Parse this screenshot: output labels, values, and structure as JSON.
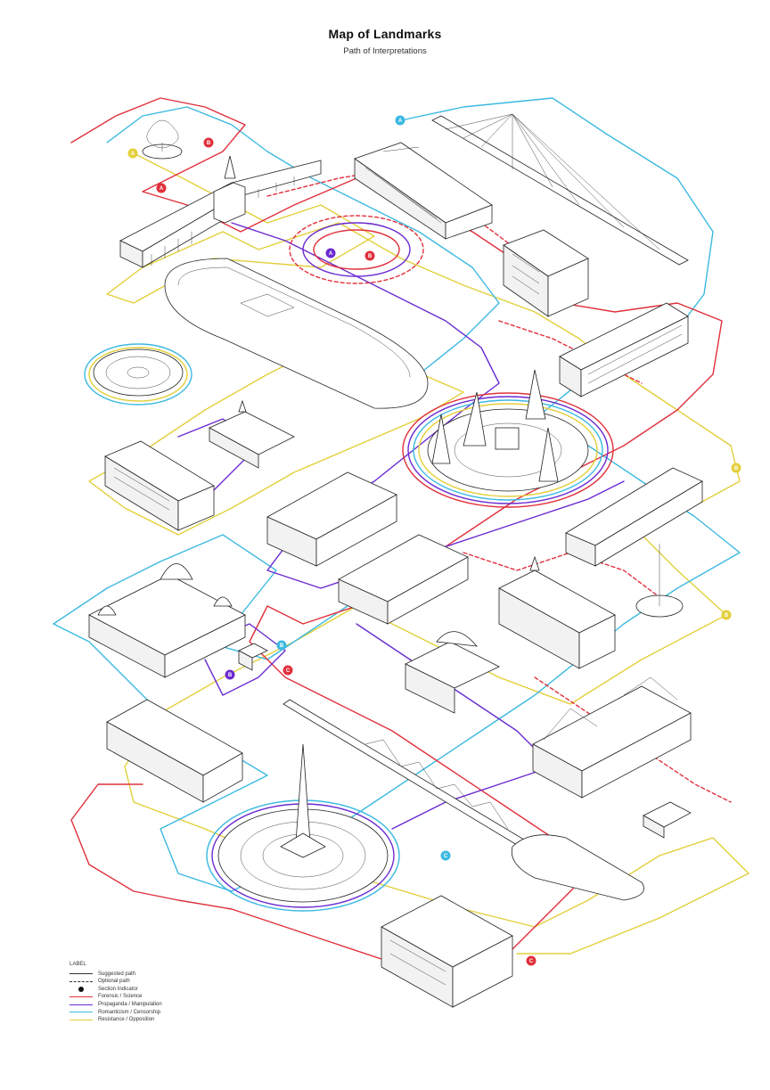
{
  "title": "Map of Landmarks",
  "subtitle": "Path of Interpretations",
  "legend": {
    "heading": "LABEL",
    "items": [
      {
        "label": "Suggested path",
        "style": "solid",
        "color": "#333333"
      },
      {
        "label": "Optional path",
        "style": "dashed",
        "color": "#333333"
      },
      {
        "label": "Section Indicator",
        "style": "dot",
        "color": "#111111"
      },
      {
        "label": "Forensic / Science",
        "style": "solid",
        "color": "#e0303c"
      },
      {
        "label": "Propaganda / Manipulation",
        "style": "solid",
        "color": "#6a2bd0"
      },
      {
        "label": "Romanticism / Censorship",
        "style": "solid",
        "color": "#3cb9e0"
      },
      {
        "label": "Resistance / Opposition",
        "style": "solid",
        "color": "#e3cf3a"
      }
    ]
  },
  "colors": {
    "forensic": "#e0303c",
    "propaganda": "#6a2bd0",
    "romanticism": "#3cb9e0",
    "resistance": "#e3cf3a"
  },
  "section_markers": [
    {
      "letter": "A",
      "color": "#e3cf3a"
    },
    {
      "letter": "B",
      "color": "#e0303c"
    },
    {
      "letter": "A",
      "color": "#e0303c"
    },
    {
      "letter": "A",
      "color": "#3cb9e0"
    },
    {
      "letter": "A",
      "color": "#6a2bd0"
    },
    {
      "letter": "B",
      "color": "#e0303c"
    },
    {
      "letter": "B",
      "color": "#3cb9e0"
    },
    {
      "letter": "B",
      "color": "#6a2bd0"
    },
    {
      "letter": "C",
      "color": "#e0303c"
    },
    {
      "letter": "B",
      "color": "#e3cf3a"
    },
    {
      "letter": "B",
      "color": "#e3cf3a"
    },
    {
      "letter": "C",
      "color": "#3cb9e0"
    },
    {
      "letter": "C",
      "color": "#e0303c"
    }
  ]
}
